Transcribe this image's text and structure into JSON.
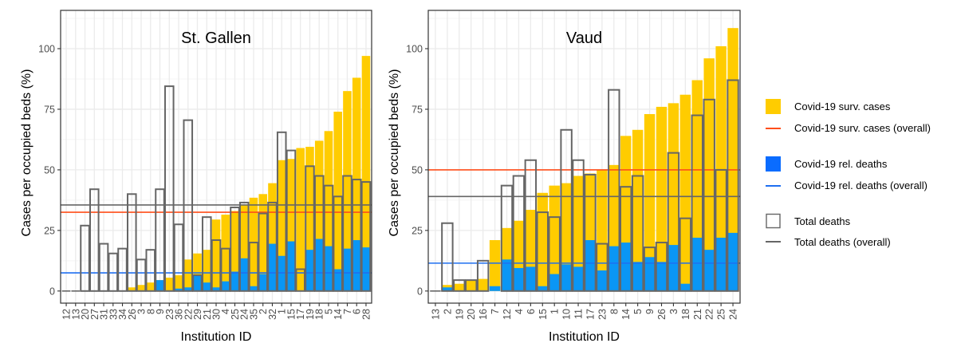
{
  "colors": {
    "cases_fill": "#FFCC00",
    "rel_deaths_fill": "#0A96F5",
    "total_deaths_outline": "#666666",
    "cases_overall_line": "#FF4E1A",
    "rel_deaths_overall_line": "#1F6FF0",
    "total_deaths_overall_line": "#666666",
    "grid_major": "#EBEBEB",
    "grid_minor": "#F5F5F5"
  },
  "chart_data": [
    {
      "type": "bar",
      "title": "St. Gallen",
      "xlabel": "Institution ID",
      "ylabel": "Cases per occupied beds (%)",
      "ylim": [
        -5,
        115.8
      ],
      "yticks": [
        0,
        25,
        50,
        75,
        100
      ],
      "grid": true,
      "categories": [
        "12",
        "13",
        "20",
        "27",
        "31",
        "33",
        "34",
        "26",
        "3",
        "8",
        "9",
        "23",
        "36",
        "22",
        "29",
        "21",
        "30",
        "4",
        "25",
        "24",
        "35",
        "2",
        "32",
        "1",
        "15",
        "17",
        "19",
        "18",
        "5",
        "14",
        "7",
        "6",
        "28"
      ],
      "series": [
        {
          "name": "Covid-19 surv. cases",
          "kind": "fill",
          "values": [
            0,
            0,
            0,
            0,
            0,
            0,
            0,
            1.5,
            2.5,
            3.5,
            4.5,
            5.5,
            6.5,
            13,
            15.5,
            17,
            29.5,
            31.5,
            33,
            35.5,
            38.5,
            40,
            44.5,
            54,
            54.5,
            59,
            59.5,
            62,
            66,
            74,
            82.5,
            88,
            97
          ]
        },
        {
          "name": "Covid-19 rel. deaths",
          "kind": "fill",
          "values": [
            0,
            0,
            0,
            0,
            0,
            0,
            0,
            0,
            0,
            0,
            4.5,
            0,
            1,
            1.5,
            6.5,
            3.5,
            1.5,
            4,
            8,
            13.5,
            2,
            7,
            19.5,
            14.5,
            20.5,
            0,
            17,
            21.5,
            18.5,
            9,
            17.5,
            21,
            18
          ]
        },
        {
          "name": "Total deaths",
          "kind": "outline",
          "values": [
            0,
            0,
            27,
            42,
            19.5,
            15.5,
            17.5,
            40,
            13,
            17,
            42,
            84.5,
            27.5,
            70.5,
            6.5,
            30.5,
            21,
            17.5,
            34.5,
            36.5,
            20,
            32,
            36.5,
            65.5,
            58,
            9,
            51.5,
            47.5,
            43.5,
            39,
            47.5,
            46,
            45
          ]
        }
      ],
      "overall": {
        "Covid-19 surv. cases (overall)": 32.5,
        "Covid-19 rel. deaths (overall)": 7.5,
        "Total deaths (overall)": 35.5
      }
    },
    {
      "type": "bar",
      "title": "Vaud",
      "xlabel": "Institution ID",
      "ylabel": "Cases per occupied beds (%)",
      "ylim": [
        -5,
        115.8
      ],
      "yticks": [
        0,
        25,
        50,
        75,
        100
      ],
      "grid": true,
      "categories": [
        "13",
        "2",
        "19",
        "20",
        "16",
        "7",
        "12",
        "4",
        "6",
        "15",
        "1",
        "10",
        "11",
        "17",
        "23",
        "8",
        "14",
        "5",
        "9",
        "26",
        "3",
        "18",
        "21",
        "22",
        "25",
        "24"
      ],
      "series": [
        {
          "name": "Covid-19 surv. cases",
          "kind": "fill",
          "values": [
            0,
            2.5,
            3,
            4.5,
            5,
            21,
            26,
            29,
            33.5,
            40.5,
            43.5,
            44.5,
            47.5,
            48.5,
            50,
            52,
            64,
            66.5,
            73,
            76,
            77.5,
            81,
            87,
            96,
            101,
            108.5
          ]
        },
        {
          "name": "Covid-19 rel. deaths",
          "kind": "fill",
          "values": [
            0,
            1.5,
            0,
            0,
            0,
            2,
            13,
            9.5,
            10,
            2,
            7,
            11,
            10,
            21,
            8.5,
            18.5,
            20,
            12,
            14,
            12,
            19,
            3,
            22,
            17,
            22,
            24
          ]
        },
        {
          "name": "Total deaths",
          "kind": "outline",
          "values": [
            0,
            28,
            4.5,
            4.5,
            12.5,
            null,
            43.5,
            47.5,
            54,
            32.5,
            30.5,
            66.5,
            54,
            48,
            19.5,
            83,
            43,
            47.5,
            18,
            20,
            57,
            30,
            72.5,
            79,
            50,
            87
          ]
        }
      ],
      "overall": {
        "Covid-19 surv. cases (overall)": 50,
        "Covid-19 rel. deaths (overall)": 11.5,
        "Total deaths (overall)": 39
      }
    }
  ],
  "legend": {
    "position": "right",
    "items": [
      {
        "label": "Covid-19 surv. cases",
        "kind": "fill-yellow"
      },
      {
        "label": "Covid-19 surv. cases (overall)",
        "kind": "line-red"
      },
      {
        "label": "Covid-19 rel. deaths",
        "kind": "fill-blue"
      },
      {
        "label": "Covid-19 rel. deaths (overall)",
        "kind": "line-blue"
      },
      {
        "label": "Total deaths",
        "kind": "outline-grey"
      },
      {
        "label": "Total deaths (overall)",
        "kind": "line-grey"
      }
    ]
  }
}
